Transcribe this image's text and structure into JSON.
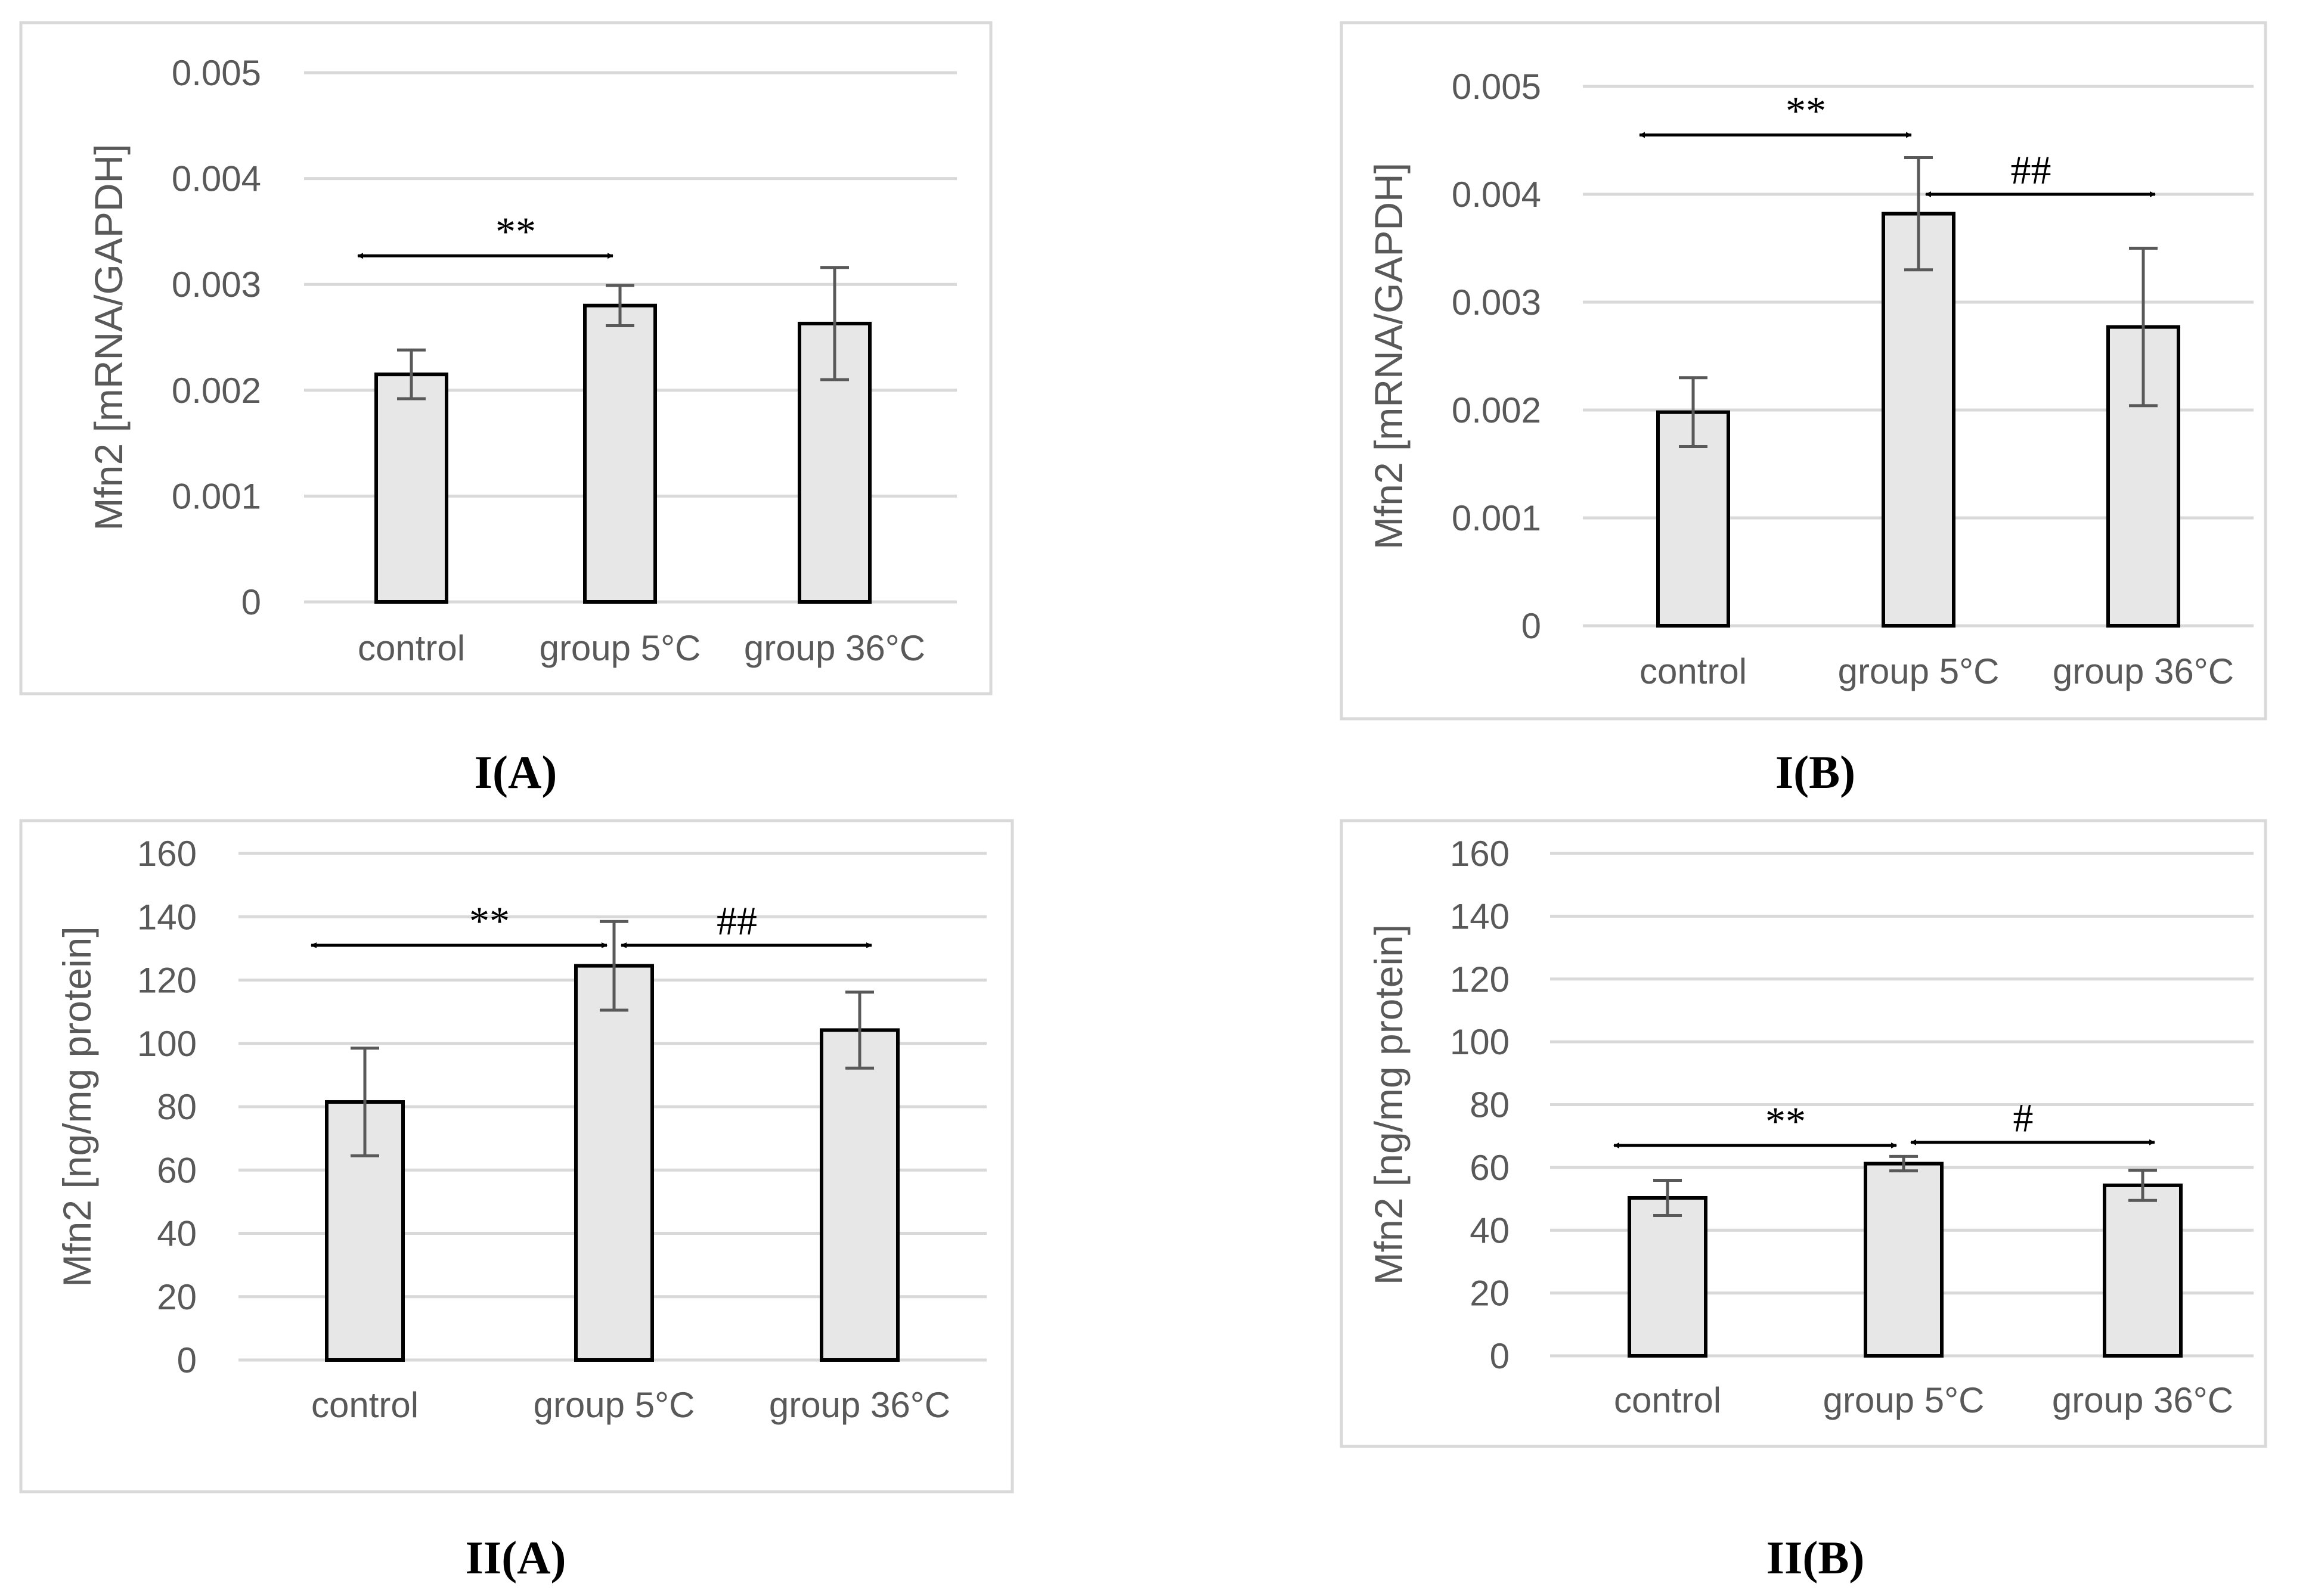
{
  "colors": {
    "bar_fill": "#e7e7e7",
    "bar_stroke": "#000000",
    "grid": "#d9d9d9",
    "error_bar": "#595959",
    "frame": "#d9d9d9",
    "text": "#595959"
  },
  "chart_data": [
    {
      "type": "bar",
      "panel_label": "I(A)",
      "ylabel": "Mfn2 [mRNA/GAPDH]",
      "categories": [
        "control",
        "group 5°C",
        "group 36°C"
      ],
      "values": [
        0.00215,
        0.0028,
        0.00263
      ],
      "errors": [
        0.00023,
        0.00019,
        0.00053
      ],
      "ylim": [
        0,
        0.005
      ],
      "yticks": [
        "0",
        "0.001",
        "0.002",
        "0.003",
        "0.004",
        "0.005"
      ],
      "grid": true,
      "significance": [
        {
          "from": 0,
          "to": 1,
          "label": "**",
          "y": 0.00327
        }
      ]
    },
    {
      "type": "bar",
      "panel_label": "I(B)",
      "ylabel": "Mfn2 [mRNA/GAPDH]",
      "categories": [
        "control",
        "group 5°C",
        "group 36°C"
      ],
      "values": [
        0.00198,
        0.00382,
        0.00277
      ],
      "errors": [
        0.00032,
        0.00052,
        0.00073
      ],
      "ylim": [
        0,
        0.005
      ],
      "yticks": [
        "0",
        "0.001",
        "0.002",
        "0.003",
        "0.004",
        "0.005"
      ],
      "grid": true,
      "significance": [
        {
          "from": 0,
          "to": 1,
          "label": "**",
          "y": 0.00455
        },
        {
          "from": 1,
          "to": 2,
          "label": "##",
          "y": 0.004
        }
      ]
    },
    {
      "type": "bar",
      "panel_label": "II(A)",
      "ylabel": "Mfn2 [ng/mg protein]",
      "categories": [
        "control",
        "group 5°C",
        "group 36°C"
      ],
      "values": [
        81.5,
        124.5,
        104.2
      ],
      "errors": [
        17,
        14,
        12
      ],
      "ylim": [
        0,
        160
      ],
      "yticks": [
        "0",
        "20",
        "40",
        "60",
        "80",
        "100",
        "120",
        "140",
        "160"
      ],
      "grid": true,
      "significance": [
        {
          "from": 0,
          "to": 1,
          "label": "**",
          "y": 131
        },
        {
          "from": 1,
          "to": 2,
          "label": "##",
          "y": 131
        }
      ]
    },
    {
      "type": "bar",
      "panel_label": "II(B)",
      "ylabel": "Mfn2 [ng/mg protein]",
      "categories": [
        "control",
        "group 5°C",
        "group 36°C"
      ],
      "values": [
        50.3,
        61.2,
        54.3
      ],
      "errors": [
        5.6,
        2.3,
        4.8
      ],
      "ylim": [
        0,
        160
      ],
      "yticks": [
        "0",
        "20",
        "40",
        "60",
        "80",
        "100",
        "120",
        "140",
        "160"
      ],
      "grid": true,
      "significance": [
        {
          "from": 0,
          "to": 1,
          "label": "**",
          "y": 67
        },
        {
          "from": 1,
          "to": 2,
          "label": "#",
          "y": 68
        }
      ]
    }
  ]
}
